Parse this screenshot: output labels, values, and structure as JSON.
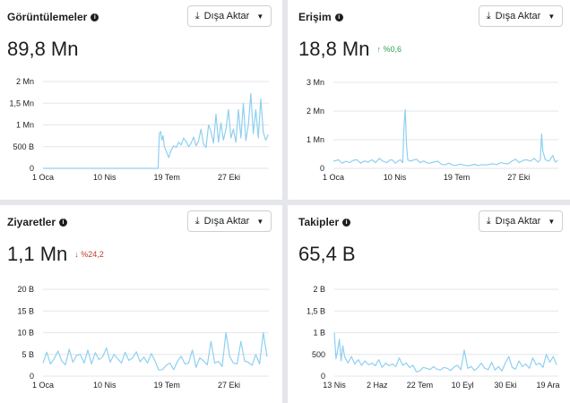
{
  "panels": [
    {
      "title": "Görüntülemeler",
      "export_label": "Dışa Aktar",
      "value": "89,8 Mn",
      "delta": "",
      "delta_dir": ""
    },
    {
      "title": "Erişim",
      "export_label": "Dışa Aktar",
      "value": "18,8 Mn",
      "delta": "%0,6",
      "delta_dir": "up"
    },
    {
      "title": "Ziyaretler",
      "export_label": "Dışa Aktar",
      "value": "1,1 Mn",
      "delta": "%24,2",
      "delta_dir": "down"
    },
    {
      "title": "Takipler",
      "export_label": "Dışa Aktar",
      "value": "65,4 B",
      "delta": "",
      "delta_dir": ""
    }
  ],
  "icons": {
    "info": "info-icon",
    "download": "download-icon",
    "caret": "caret-down-icon",
    "arrow_up": "arrow-up-icon",
    "arrow_down": "arrow-down-icon"
  },
  "colors": {
    "line": "#8fd0f0",
    "up": "#31a24c",
    "down": "#c0392b"
  },
  "chart_data": [
    {
      "type": "line",
      "title": "Görüntülemeler",
      "ylim": [
        0,
        2000000
      ],
      "y_ticks": [
        0,
        500000,
        1000000,
        1500000,
        2000000
      ],
      "y_tick_labels": [
        "0",
        "500 B",
        "1 Mn",
        "1,5 Mn",
        "2 Mn"
      ],
      "x_tick_labels": [
        "1 Oca",
        "10 Nis",
        "19 Tem",
        "27 Eki"
      ],
      "x_tick_days": [
        0,
        99,
        199,
        299
      ],
      "x_range_days": [
        0,
        363
      ],
      "grid": true,
      "series": [
        {
          "x": [
            0,
            40,
            80,
            120,
            180,
            185,
            187,
            189,
            191,
            193,
            195,
            198,
            202,
            206,
            210,
            214,
            218,
            222,
            226,
            230,
            234,
            238,
            242,
            246,
            250,
            254,
            258,
            262,
            266,
            270,
            274,
            278,
            282,
            286,
            290,
            294,
            298,
            302,
            306,
            310,
            314,
            318,
            322,
            326,
            330,
            334,
            338,
            342,
            346,
            350,
            354,
            358,
            362
          ],
          "values": [
            0,
            0,
            0,
            0,
            0,
            0,
            800000,
            850000,
            650000,
            750000,
            500000,
            400000,
            250000,
            420000,
            520000,
            480000,
            600000,
            540000,
            700000,
            620000,
            500000,
            580000,
            720000,
            520000,
            640000,
            900000,
            560000,
            480000,
            1000000,
            850000,
            580000,
            1250000,
            600000,
            1050000,
            650000,
            900000,
            1350000,
            700000,
            900000,
            600000,
            1350000,
            700000,
            1500000,
            640000,
            1000000,
            1720000,
            800000,
            1350000,
            700000,
            1600000,
            820000,
            650000,
            780000
          ]
        }
      ]
    },
    {
      "type": "line",
      "title": "Erişim",
      "ylim": [
        0,
        3000000
      ],
      "y_ticks": [
        0,
        1000000,
        2000000,
        3000000
      ],
      "y_tick_labels": [
        "0",
        "1 Mn",
        "2 Mn",
        "3 Mn"
      ],
      "x_tick_labels": [
        "1 Oca",
        "10 Nis",
        "19 Tem",
        "27 Eki"
      ],
      "x_tick_days": [
        0,
        99,
        199,
        299
      ],
      "x_range_days": [
        0,
        363
      ],
      "grid": true,
      "series": [
        {
          "x": [
            0,
            8,
            14,
            20,
            26,
            32,
            38,
            44,
            50,
            56,
            62,
            68,
            74,
            80,
            86,
            92,
            96,
            100,
            104,
            108,
            112,
            114,
            116,
            118,
            120,
            124,
            128,
            134,
            140,
            146,
            150,
            156,
            162,
            168,
            174,
            180,
            186,
            192,
            198,
            204,
            210,
            216,
            222,
            228,
            234,
            240,
            246,
            252,
            258,
            264,
            270,
            276,
            282,
            288,
            294,
            300,
            306,
            312,
            318,
            324,
            330,
            334,
            336,
            338,
            342,
            348,
            354,
            358,
            362
          ],
          "values": [
            250000,
            300000,
            180000,
            250000,
            200000,
            280000,
            300000,
            180000,
            260000,
            220000,
            300000,
            200000,
            350000,
            250000,
            200000,
            300000,
            280000,
            180000,
            250000,
            300000,
            200000,
            1500000,
            2050000,
            800000,
            300000,
            250000,
            280000,
            320000,
            200000,
            260000,
            200000,
            180000,
            220000,
            250000,
            150000,
            120000,
            180000,
            120000,
            100000,
            150000,
            120000,
            90000,
            110000,
            140000,
            100000,
            130000,
            120000,
            140000,
            160000,
            130000,
            200000,
            170000,
            160000,
            250000,
            320000,
            200000,
            280000,
            300000,
            250000,
            350000,
            220000,
            300000,
            1200000,
            600000,
            300000,
            250000,
            450000,
            220000,
            280000
          ]
        }
      ]
    },
    {
      "type": "line",
      "title": "Ziyaretler",
      "ylim": [
        0,
        20000
      ],
      "y_ticks": [
        0,
        5000,
        10000,
        15000,
        20000
      ],
      "y_tick_labels": [
        "0",
        "5 B",
        "10 B",
        "15 B",
        "20 B"
      ],
      "x_tick_labels": [
        "1 Oca",
        "10 Nis",
        "19 Tem",
        "27 Eki"
      ],
      "x_tick_days": [
        0,
        99,
        199,
        299
      ],
      "x_range_days": [
        0,
        363
      ],
      "grid": true,
      "series": [
        {
          "x": [
            0,
            6,
            12,
            18,
            24,
            30,
            36,
            42,
            48,
            54,
            60,
            66,
            72,
            78,
            84,
            90,
            96,
            102,
            108,
            114,
            120,
            126,
            132,
            138,
            144,
            150,
            156,
            162,
            168,
            174,
            180,
            186,
            192,
            198,
            204,
            210,
            216,
            222,
            228,
            234,
            240,
            246,
            252,
            258,
            264,
            270,
            276,
            282,
            288,
            294,
            300,
            306,
            312,
            318,
            324,
            330,
            336,
            342,
            348,
            354,
            360
          ],
          "values": [
            3000,
            5500,
            2800,
            4000,
            5800,
            3500,
            2600,
            6200,
            3200,
            4800,
            5000,
            3000,
            6000,
            2800,
            5400,
            3800,
            4500,
            6500,
            3200,
            5000,
            4000,
            3000,
            5500,
            3600,
            4200,
            5600,
            3300,
            4400,
            3000,
            5200,
            3500,
            1400,
            1500,
            2500,
            3000,
            1500,
            3400,
            4600,
            2800,
            3000,
            6000,
            2000,
            4200,
            3500,
            2600,
            8000,
            3000,
            3400,
            2200,
            10000,
            4500,
            3000,
            2800,
            8000,
            3500,
            3200,
            2500,
            5000,
            2800,
            10000,
            4500
          ]
        }
      ]
    },
    {
      "type": "line",
      "title": "Takipler",
      "ylim": [
        0,
        2000
      ],
      "y_ticks": [
        0,
        500,
        1000,
        1500,
        2000
      ],
      "y_tick_labels": [
        "0",
        "500",
        "1 B",
        "1,5 B",
        "2 B"
      ],
      "x_tick_labels": [
        "13 Nis",
        "2 Haz",
        "22 Tem",
        "10 Eyl",
        "30 Eki",
        "19 Ara"
      ],
      "x_tick_days": [
        0,
        50,
        100,
        150,
        200,
        250
      ],
      "x_range_days": [
        0,
        262
      ],
      "grid": true,
      "series": [
        {
          "x": [
            0,
            2,
            4,
            6,
            8,
            10,
            12,
            16,
            20,
            24,
            28,
            32,
            36,
            40,
            44,
            48,
            52,
            56,
            60,
            64,
            68,
            72,
            76,
            80,
            84,
            88,
            92,
            96,
            100,
            104,
            108,
            112,
            116,
            120,
            124,
            128,
            132,
            136,
            140,
            144,
            148,
            152,
            156,
            160,
            164,
            168,
            172,
            176,
            180,
            184,
            188,
            192,
            196,
            200,
            204,
            208,
            212,
            216,
            220,
            224,
            228,
            232,
            236,
            240,
            244,
            248,
            252,
            256,
            260
          ],
          "values": [
            1000,
            400,
            600,
            850,
            350,
            700,
            450,
            300,
            450,
            280,
            380,
            250,
            350,
            260,
            300,
            240,
            380,
            200,
            300,
            240,
            280,
            220,
            420,
            250,
            300,
            200,
            250,
            100,
            120,
            200,
            180,
            150,
            220,
            160,
            140,
            200,
            180,
            130,
            210,
            250,
            150,
            600,
            180,
            220,
            130,
            200,
            300,
            180,
            150,
            320,
            140,
            220,
            120,
            300,
            450,
            200,
            160,
            350,
            220,
            280,
            180,
            420,
            260,
            300,
            200,
            500,
            320,
            450,
            260
          ]
        }
      ]
    }
  ]
}
